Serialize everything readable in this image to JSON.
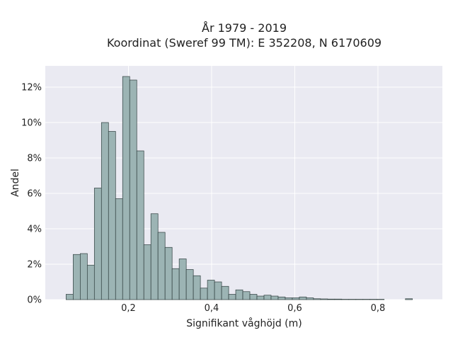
{
  "chart_data": {
    "type": "bar",
    "title_line1": "År 1979 - 2019",
    "title_line2": "Koordinat (Sweref 99 TM): E 352208, N 6170609",
    "xlabel": "Signifikant våghöjd (m)",
    "ylabel": "Andel",
    "xlim": [
      0.0,
      0.955
    ],
    "ylim": [
      0,
      13.2
    ],
    "x_ticks": [
      0.2,
      0.4,
      0.6,
      0.8
    ],
    "x_tick_labels": [
      "0,2",
      "0,4",
      "0,6",
      "0,8"
    ],
    "y_ticks": [
      0,
      2,
      4,
      6,
      8,
      10,
      12
    ],
    "y_tick_labels": [
      "0%",
      "2%",
      "4%",
      "6%",
      "8%",
      "10%",
      "12%"
    ],
    "grid": true,
    "bin_width": 0.017,
    "bin_starts": [
      0.05,
      0.067,
      0.084,
      0.101,
      0.118,
      0.135,
      0.152,
      0.169,
      0.186,
      0.203,
      0.22,
      0.237,
      0.254,
      0.271,
      0.288,
      0.305,
      0.322,
      0.339,
      0.356,
      0.373,
      0.39,
      0.407,
      0.424,
      0.441,
      0.458,
      0.475,
      0.492,
      0.509,
      0.526,
      0.543,
      0.56,
      0.577,
      0.594,
      0.611,
      0.628,
      0.645,
      0.662,
      0.679,
      0.696,
      0.713,
      0.73,
      0.747,
      0.764,
      0.781,
      0.798,
      0.815,
      0.832,
      0.849,
      0.866
    ],
    "values": [
      0.3,
      2.55,
      2.6,
      1.95,
      6.3,
      10.0,
      9.5,
      5.7,
      12.6,
      12.4,
      8.4,
      3.1,
      4.85,
      3.8,
      2.95,
      1.75,
      2.3,
      1.7,
      1.35,
      0.65,
      1.1,
      1.0,
      0.75,
      0.3,
      0.55,
      0.45,
      0.3,
      0.2,
      0.25,
      0.2,
      0.15,
      0.1,
      0.1,
      0.15,
      0.1,
      0.05,
      0.04,
      0.03,
      0.03,
      0.02,
      0.02,
      0.02,
      0.02,
      0.02,
      0.02,
      0,
      0,
      0,
      0.05
    ],
    "colors": {
      "bar_fill": "#9cb4b4",
      "bar_edge": "#2f3e3e",
      "plot_bg": "#eaeaf2",
      "grid": "#ffffff"
    }
  }
}
